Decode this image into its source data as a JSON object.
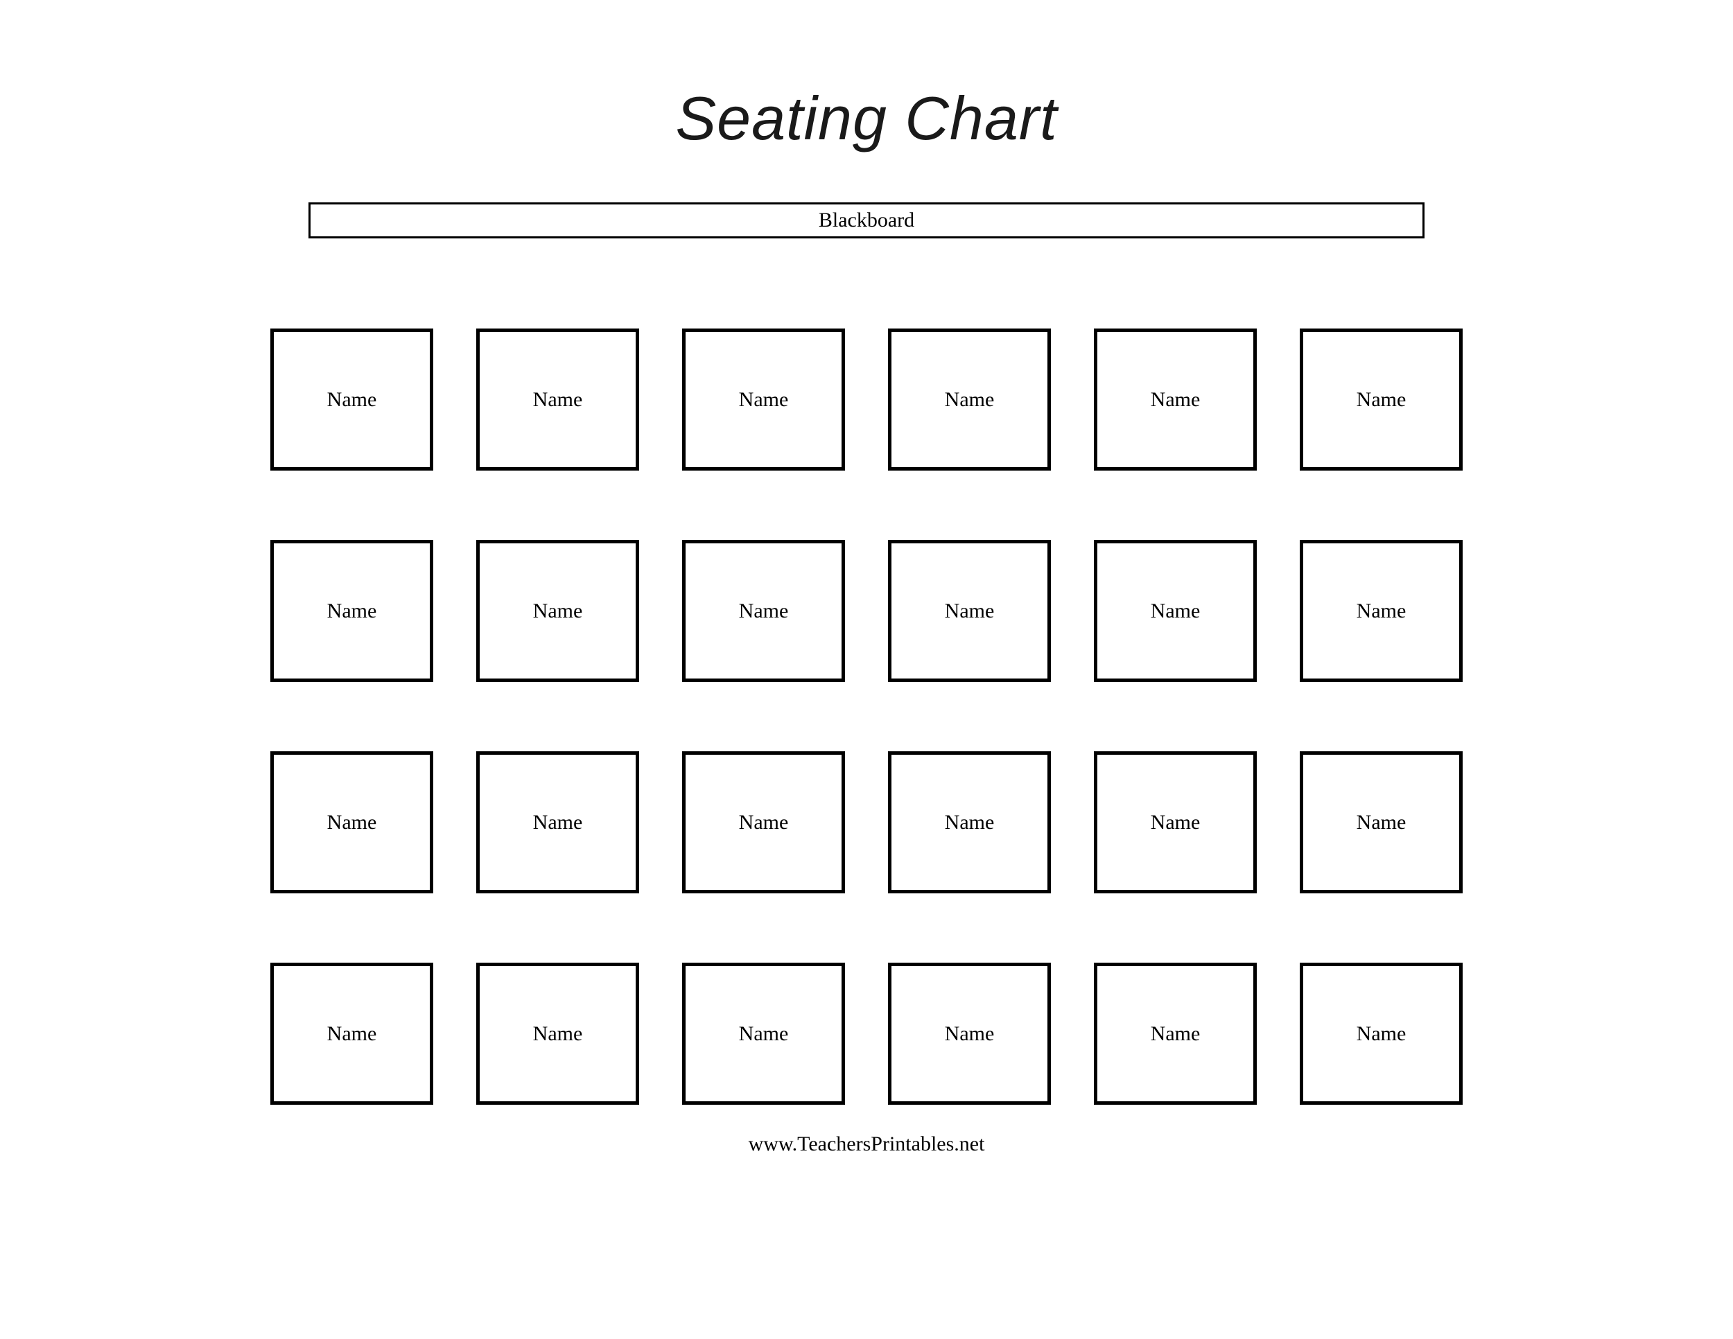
{
  "title": "Seating Chart",
  "blackboard_label": "Blackboard",
  "footer": "www.TeachersPrintables.net",
  "layout": {
    "rows": 4,
    "columns": 6,
    "total_seats": 24
  },
  "styling": {
    "background_color": "#ffffff",
    "text_color": "#000000",
    "border_color": "#000000",
    "title_fontsize": 88,
    "title_font_family": "Lucida Sans Unicode",
    "title_font_style": "italic",
    "body_fontsize": 30,
    "body_font_family": "Georgia",
    "seat_border_width": 5,
    "blackboard_border_width": 3,
    "seat_width": 235,
    "seat_height": 205,
    "blackboard_width": 1610,
    "blackboard_height": 52,
    "column_gap": 62,
    "row_gap": 100
  },
  "seats": [
    {
      "label": "Name"
    },
    {
      "label": "Name"
    },
    {
      "label": "Name"
    },
    {
      "label": "Name"
    },
    {
      "label": "Name"
    },
    {
      "label": "Name"
    },
    {
      "label": "Name"
    },
    {
      "label": "Name"
    },
    {
      "label": "Name"
    },
    {
      "label": "Name"
    },
    {
      "label": "Name"
    },
    {
      "label": "Name"
    },
    {
      "label": "Name"
    },
    {
      "label": "Name"
    },
    {
      "label": "Name"
    },
    {
      "label": "Name"
    },
    {
      "label": "Name"
    },
    {
      "label": "Name"
    },
    {
      "label": "Name"
    },
    {
      "label": "Name"
    },
    {
      "label": "Name"
    },
    {
      "label": "Name"
    },
    {
      "label": "Name"
    },
    {
      "label": "Name"
    }
  ]
}
